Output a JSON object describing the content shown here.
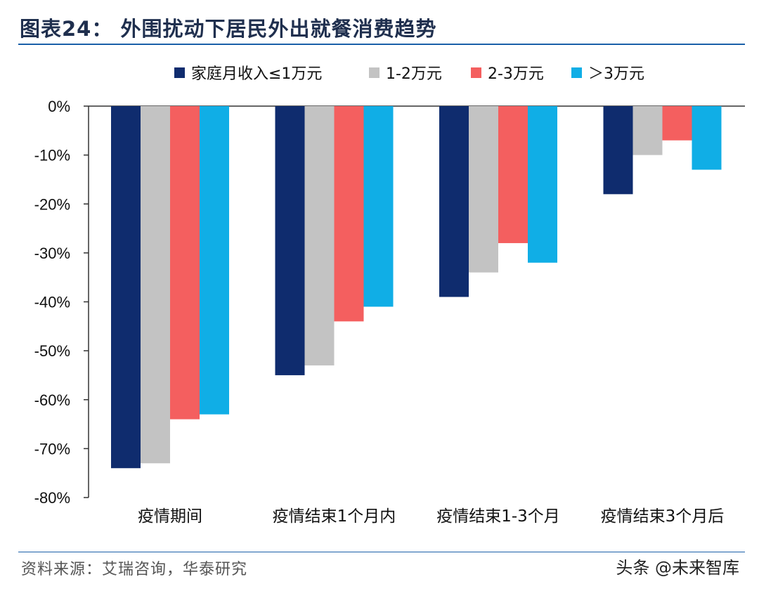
{
  "title": "图表24：  外围扰动下居民外出就餐消费趋势",
  "source": "资料来源：艾瑞咨询，华泰研究",
  "watermark": "头条 @未来智库",
  "chart_data": {
    "type": "bar",
    "categories": [
      "疫情期间",
      "疫情结束1个月内",
      "疫情结束1-3个月",
      "疫情结束3个月后"
    ],
    "series": [
      {
        "name": "家庭月收入≤1万元",
        "color": "#0f2c6e",
        "values": [
          -74,
          -55,
          -39,
          -18
        ]
      },
      {
        "name": "1-2万元",
        "color": "#c3c3c3",
        "values": [
          -73,
          -53,
          -34,
          -10
        ]
      },
      {
        "name": "2-3万元",
        "color": "#f45f5f",
        "values": [
          -64,
          -44,
          -28,
          -7
        ]
      },
      {
        "name": "＞3万元",
        "color": "#10aee6",
        "values": [
          -63,
          -41,
          -32,
          -13
        ]
      }
    ],
    "ylim": [
      -80,
      0
    ],
    "yticks": [
      0,
      -10,
      -20,
      -30,
      -40,
      -50,
      -60,
      -70,
      -80
    ],
    "ytick_labels": [
      "0%",
      "-10%",
      "-20%",
      "-30%",
      "-40%",
      "-50%",
      "-60%",
      "-70%",
      "-80%"
    ],
    "legend_position": "top"
  }
}
